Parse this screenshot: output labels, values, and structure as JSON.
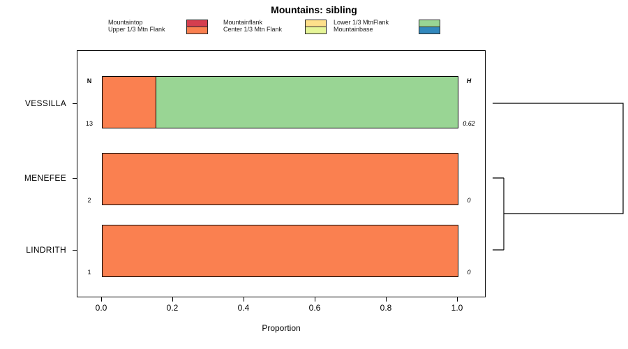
{
  "title": "Mountains: sibling",
  "chart_data": {
    "type": "bar",
    "orientation": "horizontal",
    "title": "Mountains: sibling",
    "xlabel": "Proportion",
    "xlim": [
      0,
      1
    ],
    "xtick_labels": [
      "0.0",
      "0.2",
      "0.4",
      "0.6",
      "0.8",
      "1.0"
    ],
    "grid": false,
    "legend_position": "top",
    "columns": {
      "n_header": "N",
      "h_header": "H"
    },
    "rows": [
      {
        "label": "VESSILLA",
        "n": "13",
        "h": "0.62",
        "segments": [
          {
            "category": "Upper 1/3 Mtn Flank",
            "value": 0.15,
            "color": "#FA8050"
          },
          {
            "category": "Lower 1/3 MtnFlank",
            "value": 0.85,
            "color": "#99D594"
          }
        ]
      },
      {
        "label": "MENEFEE",
        "n": "2",
        "h": "0",
        "segments": [
          {
            "category": "Upper 1/3 Mtn Flank",
            "value": 1.0,
            "color": "#FA8050"
          }
        ]
      },
      {
        "label": "LINDRITH",
        "n": "1",
        "h": "0",
        "segments": [
          {
            "category": "Upper 1/3 Mtn Flank",
            "value": 1.0,
            "color": "#FA8050"
          }
        ]
      }
    ],
    "legend": [
      {
        "label": "Mountaintop",
        "color": "#D53E4F"
      },
      {
        "label": "Upper 1/3 Mtn Flank",
        "color": "#FA8050"
      },
      {
        "label": "Mountainflank",
        "color": "#FEE08B"
      },
      {
        "label": "Center 1/3 Mtn Flank",
        "color": "#E6F598"
      },
      {
        "label": "Lower 1/3 MtnFlank",
        "color": "#99D594"
      },
      {
        "label": "Mountainbase",
        "color": "#3288BD"
      }
    ],
    "clustering": "((MENEFEE,LINDRITH),VESSILLA)"
  }
}
